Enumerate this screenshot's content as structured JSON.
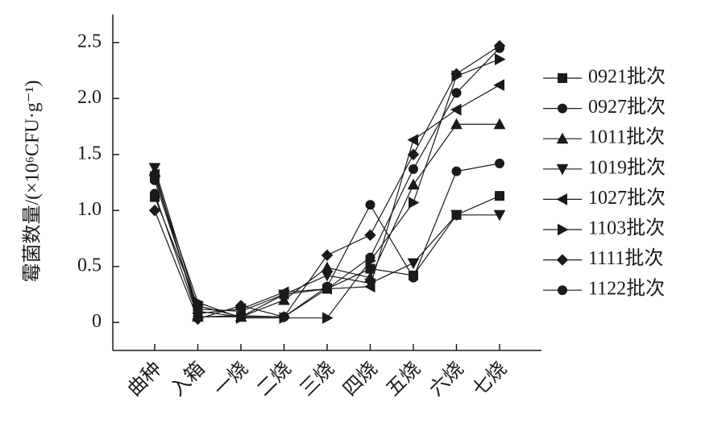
{
  "chart_data": {
    "type": "line",
    "y_label": "霉菌数量/(×10⁶CFU·g⁻¹)",
    "categories": [
      "曲种",
      "入箱",
      "一烧",
      "二烧",
      "三烧",
      "四烧",
      "五烧",
      "六烧",
      "七烧"
    ],
    "ylim": [
      -0.25,
      2.75
    ],
    "yticks": [
      0,
      0.5,
      {
        "value": 1,
        "label": "1.0"
      },
      1.5,
      {
        "value": 2,
        "label": "2.0"
      },
      2.5
    ],
    "series": [
      {
        "name": "0921批次",
        "color": "#1a1a1a",
        "marker": "square",
        "values": [
          1.12,
          0.15,
          0.05,
          0.25,
          0.3,
          0.48,
          0.42,
          0.96,
          1.13
        ]
      },
      {
        "name": "0927批次",
        "color": "#1a1a1a",
        "marker": "circle",
        "values": [
          1.27,
          0.1,
          0.05,
          0.05,
          0.3,
          0.58,
          1.37,
          2.05,
          2.45
        ]
      },
      {
        "name": "1011批次",
        "color": "#1a1a1a",
        "marker": "triangle-up",
        "values": [
          1.35,
          0.05,
          0.05,
          0.2,
          0.49,
          0.4,
          1.23,
          1.77,
          1.77
        ]
      },
      {
        "name": "1019批次",
        "color": "#1a1a1a",
        "marker": "triangle-down",
        "values": [
          1.38,
          0.12,
          0.1,
          0.25,
          0.42,
          0.35,
          0.53,
          0.96,
          0.96
        ]
      },
      {
        "name": "1027批次",
        "color": "#1a1a1a",
        "marker": "triangle-left",
        "values": [
          1.32,
          0.08,
          0.12,
          0.27,
          0.3,
          0.32,
          1.63,
          1.9,
          2.12
        ]
      },
      {
        "name": "1103批次",
        "color": "#1a1a1a",
        "marker": "triangle-right",
        "values": [
          1.3,
          0.18,
          0.04,
          0.04,
          0.04,
          0.55,
          1.07,
          2.2,
          2.35
        ]
      },
      {
        "name": "1111批次",
        "color": "#1a1a1a",
        "marker": "diamond",
        "values": [
          1.0,
          0.03,
          0.15,
          0.05,
          0.6,
          0.78,
          1.5,
          2.22,
          2.47
        ]
      },
      {
        "name": "1122批次",
        "color": "#1a1a1a",
        "marker": "circle",
        "values": [
          1.15,
          0.05,
          0.06,
          0.05,
          0.32,
          1.05,
          0.4,
          1.35,
          1.42
        ]
      }
    ]
  }
}
